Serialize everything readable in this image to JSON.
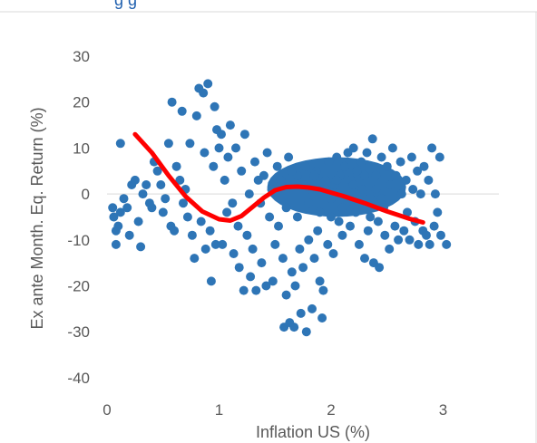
{
  "chart_data": {
    "type": "scatter",
    "title": "",
    "title_fragment": "g g",
    "xlabel": "Inflation US (%)",
    "ylabel": "Ex ante Month. Eq. Return (%)",
    "xlim": [
      0,
      3.4
    ],
    "ylim": [
      -40,
      30
    ],
    "x_ticks": [
      0,
      1,
      2,
      3
    ],
    "y_ticks": [
      30,
      20,
      10,
      0,
      -10,
      -20,
      -30,
      -40
    ],
    "grid": false,
    "legend": "none",
    "colors": {
      "points": "#2e75b6",
      "trend": "#ff0000",
      "axis": "#d9d9d9",
      "text": "#595959",
      "title": "#1f5fae"
    },
    "series": [
      {
        "kind": "scatter",
        "points": [
          [
            0.05,
            -3
          ],
          [
            0.06,
            -5
          ],
          [
            0.08,
            -8
          ],
          [
            0.08,
            -11
          ],
          [
            0.1,
            -7
          ],
          [
            0.12,
            -4
          ],
          [
            0.12,
            11
          ],
          [
            0.15,
            -1
          ],
          [
            0.18,
            -3
          ],
          [
            0.2,
            -9
          ],
          [
            0.22,
            2
          ],
          [
            0.25,
            3
          ],
          [
            0.28,
            -6
          ],
          [
            0.3,
            -11.5
          ],
          [
            0.32,
            0
          ],
          [
            0.35,
            2
          ],
          [
            0.38,
            -2
          ],
          [
            0.4,
            -3
          ],
          [
            0.42,
            7
          ],
          [
            0.45,
            5
          ],
          [
            0.48,
            2
          ],
          [
            0.5,
            -4
          ],
          [
            0.52,
            -1
          ],
          [
            0.55,
            11
          ],
          [
            0.57,
            -7
          ],
          [
            0.58,
            20
          ],
          [
            0.6,
            -8
          ],
          [
            0.62,
            6
          ],
          [
            0.65,
            3
          ],
          [
            0.67,
            18
          ],
          [
            0.68,
            -2
          ],
          [
            0.7,
            1
          ],
          [
            0.72,
            -5
          ],
          [
            0.74,
            11
          ],
          [
            0.76,
            -9
          ],
          [
            0.78,
            -14
          ],
          [
            0.8,
            17
          ],
          [
            0.82,
            23
          ],
          [
            0.84,
            -6
          ],
          [
            0.86,
            22
          ],
          [
            0.87,
            9
          ],
          [
            0.88,
            -12
          ],
          [
            0.9,
            24
          ],
          [
            0.92,
            -8
          ],
          [
            0.93,
            -19
          ],
          [
            0.95,
            6
          ],
          [
            0.96,
            19
          ],
          [
            0.97,
            -11
          ],
          [
            0.98,
            14
          ],
          [
            1.0,
            10
          ],
          [
            1.02,
            13
          ],
          [
            1.03,
            -11
          ],
          [
            1.05,
            3
          ],
          [
            1.07,
            -4
          ],
          [
            1.08,
            8
          ],
          [
            1.1,
            15
          ],
          [
            1.12,
            -2
          ],
          [
            1.13,
            -13
          ],
          [
            1.15,
            10
          ],
          [
            1.17,
            -7
          ],
          [
            1.18,
            -16
          ],
          [
            1.2,
            5
          ],
          [
            1.22,
            -21
          ],
          [
            1.23,
            13
          ],
          [
            1.25,
            -9
          ],
          [
            1.27,
            0
          ],
          [
            1.28,
            -18
          ],
          [
            1.3,
            -12
          ],
          [
            1.32,
            7
          ],
          [
            1.33,
            -21
          ],
          [
            1.35,
            3
          ],
          [
            1.37,
            -2
          ],
          [
            1.38,
            -15
          ],
          [
            1.4,
            4
          ],
          [
            1.42,
            -20
          ],
          [
            1.43,
            9
          ],
          [
            1.45,
            -5
          ],
          [
            1.47,
            1
          ],
          [
            1.48,
            -19
          ],
          [
            1.5,
            -11
          ],
          [
            1.52,
            6
          ],
          [
            1.53,
            -7
          ],
          [
            1.55,
            2
          ],
          [
            1.57,
            -14
          ],
          [
            1.58,
            -29
          ],
          [
            1.6,
            -22
          ],
          [
            1.62,
            8
          ],
          [
            1.63,
            -28
          ],
          [
            1.65,
            -17
          ],
          [
            1.67,
            -29
          ],
          [
            1.68,
            -20
          ],
          [
            1.7,
            4
          ],
          [
            1.72,
            -12
          ],
          [
            1.73,
            -26
          ],
          [
            1.75,
            -16
          ],
          [
            1.77,
            6
          ],
          [
            1.78,
            -30
          ],
          [
            1.8,
            -10
          ],
          [
            1.82,
            1
          ],
          [
            1.83,
            -25
          ],
          [
            1.85,
            -14
          ],
          [
            1.87,
            5
          ],
          [
            1.88,
            -8
          ],
          [
            1.9,
            -19
          ],
          [
            1.92,
            -27
          ],
          [
            1.93,
            -21
          ],
          [
            1.95,
            3
          ],
          [
            1.97,
            -11
          ],
          [
            1.98,
            7
          ],
          [
            2.0,
            -5
          ],
          [
            2.02,
            -13
          ],
          [
            2.03,
            2
          ],
          [
            2.05,
            8
          ],
          [
            2.07,
            -6
          ],
          [
            2.08,
            4
          ],
          [
            2.1,
            -9
          ],
          [
            2.12,
            6
          ],
          [
            2.13,
            -2
          ],
          [
            2.15,
            9
          ],
          [
            2.17,
            -7
          ],
          [
            2.18,
            3
          ],
          [
            2.2,
            10
          ],
          [
            2.22,
            -4
          ],
          [
            2.23,
            5
          ],
          [
            2.25,
            -11
          ],
          [
            2.27,
            7
          ],
          [
            2.28,
            1
          ],
          [
            2.3,
            -14
          ],
          [
            2.32,
            9
          ],
          [
            2.33,
            -8
          ],
          [
            2.35,
            -1
          ],
          [
            2.37,
            12
          ],
          [
            2.38,
            -15
          ],
          [
            2.4,
            4
          ],
          [
            2.42,
            -6
          ],
          [
            2.43,
            -16
          ],
          [
            2.45,
            8
          ],
          [
            2.47,
            -3
          ],
          [
            2.48,
            -9
          ],
          [
            2.5,
            6
          ],
          [
            2.52,
            -12
          ],
          [
            2.53,
            2
          ],
          [
            2.55,
            10
          ],
          [
            2.57,
            -7
          ],
          [
            2.58,
            4
          ],
          [
            2.6,
            -10
          ],
          [
            2.62,
            7
          ],
          [
            2.63,
            0
          ],
          [
            2.65,
            -8
          ],
          [
            2.67,
            3
          ],
          [
            2.68,
            -4
          ],
          [
            2.7,
            -10
          ],
          [
            2.72,
            8
          ],
          [
            2.73,
            1
          ],
          [
            2.75,
            -6
          ],
          [
            2.77,
            5
          ],
          [
            2.78,
            -11
          ],
          [
            2.8,
            0
          ],
          [
            2.82,
            -8
          ],
          [
            2.83,
            6
          ],
          [
            2.85,
            -9
          ],
          [
            2.87,
            3
          ],
          [
            2.88,
            -11
          ],
          [
            2.9,
            10
          ],
          [
            2.92,
            -7
          ],
          [
            2.93,
            0
          ],
          [
            2.95,
            -4
          ],
          [
            2.97,
            8
          ],
          [
            2.98,
            -9
          ],
          [
            3.03,
            -11
          ],
          [
            1.5,
            0
          ],
          [
            1.55,
            3
          ],
          [
            1.6,
            -3
          ],
          [
            1.65,
            5
          ],
          [
            1.7,
            -5
          ],
          [
            1.75,
            2
          ],
          [
            1.8,
            -2
          ],
          [
            1.85,
            4
          ],
          [
            1.9,
            -4
          ],
          [
            1.95,
            1
          ],
          [
            2.0,
            -1
          ],
          [
            2.05,
            3
          ],
          [
            2.1,
            -3
          ],
          [
            2.15,
            0
          ],
          [
            2.2,
            2
          ],
          [
            2.25,
            -2
          ],
          [
            2.3,
            4
          ],
          [
            2.35,
            -5
          ],
          [
            2.4,
            1
          ],
          [
            2.45,
            -1
          ]
        ]
      },
      {
        "kind": "trend",
        "points": [
          [
            0.25,
            13
          ],
          [
            0.4,
            9
          ],
          [
            0.55,
            4
          ],
          [
            0.7,
            -0.5
          ],
          [
            0.85,
            -3.8
          ],
          [
            1.0,
            -5.5
          ],
          [
            1.1,
            -5.8
          ],
          [
            1.2,
            -4.8
          ],
          [
            1.3,
            -2.8
          ],
          [
            1.4,
            -0.8
          ],
          [
            1.5,
            0.8
          ],
          [
            1.6,
            1.5
          ],
          [
            1.7,
            1.6
          ],
          [
            1.8,
            1.4
          ],
          [
            1.9,
            1.0
          ],
          [
            2.0,
            0.3
          ],
          [
            2.1,
            -0.4
          ],
          [
            2.2,
            -1.2
          ],
          [
            2.3,
            -2.0
          ],
          [
            2.4,
            -2.9
          ],
          [
            2.5,
            -3.8
          ],
          [
            2.6,
            -4.6
          ],
          [
            2.7,
            -5.4
          ],
          [
            2.82,
            -6.2
          ]
        ]
      }
    ]
  }
}
